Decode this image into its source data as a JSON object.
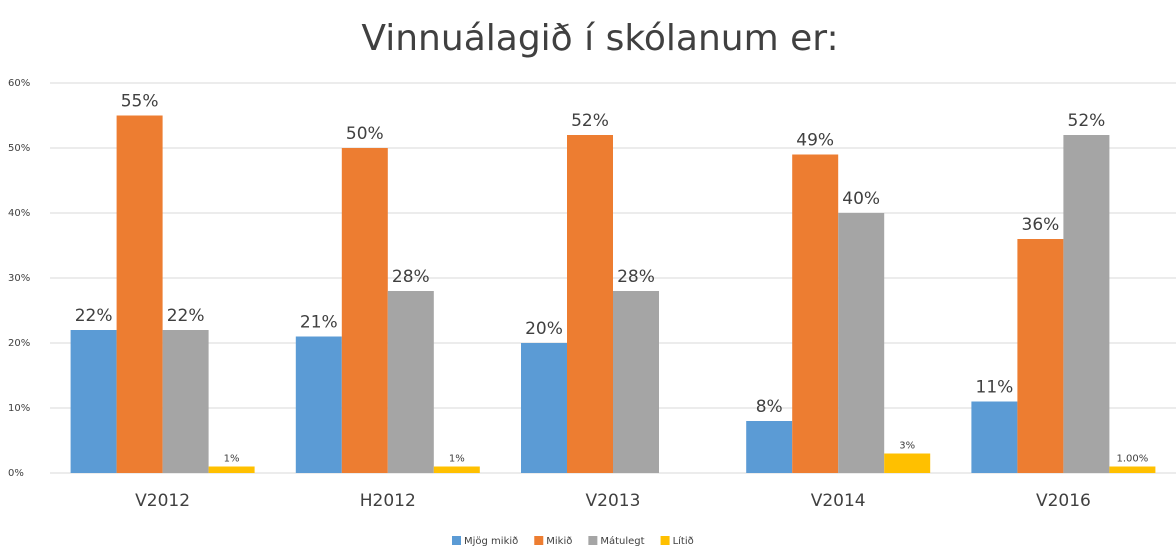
{
  "chart_data": {
    "type": "bar",
    "title": "Vinnuálagið í skólanum er:",
    "categories": [
      "V2012",
      "H2012",
      "V2013",
      "V2014",
      "V2016"
    ],
    "series": [
      {
        "name": "Mjög mikið",
        "color": "#5b9bd5",
        "values": [
          22,
          21,
          20,
          8,
          11
        ],
        "value_labels": [
          "22%",
          "21%",
          "20%",
          "8%",
          "11%"
        ]
      },
      {
        "name": "Mikið",
        "color": "#ed7d31",
        "values": [
          55,
          50,
          52,
          49,
          36
        ],
        "value_labels": [
          "55%",
          "50%",
          "52%",
          "49%",
          "36%"
        ]
      },
      {
        "name": "Mátulegt",
        "color": "#a5a5a5",
        "values": [
          22,
          28,
          28,
          40,
          52
        ],
        "value_labels": [
          "22%",
          "28%",
          "28%",
          "40%",
          "52%"
        ]
      },
      {
        "name": "Lítið",
        "color": "#ffc000",
        "values": [
          1,
          1,
          null,
          3,
          1
        ],
        "value_labels": [
          "1%",
          "1%",
          null,
          "3%",
          "1.00%"
        ]
      }
    ],
    "ylim": [
      0,
      60
    ],
    "yticks": [
      {
        "value": 0,
        "label": "0%"
      },
      {
        "value": 10,
        "label": "10%"
      },
      {
        "value": 20,
        "label": "20%"
      },
      {
        "value": 30,
        "label": "30%"
      },
      {
        "value": 40,
        "label": "40%"
      },
      {
        "value": 50,
        "label": "50%"
      },
      {
        "value": 60,
        "label": "60%"
      }
    ],
    "grid": true,
    "legend": "bottom"
  }
}
